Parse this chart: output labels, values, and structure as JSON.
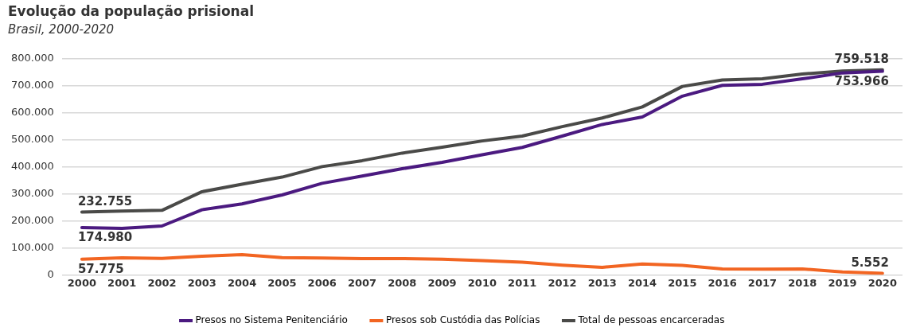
{
  "chart_data": {
    "type": "line",
    "title": "Evolução da população prisional",
    "subtitle": "Brasil, 2000-2020",
    "categories": [
      "2000",
      "2001",
      "2002",
      "2003",
      "2004",
      "2005",
      "2006",
      "2007",
      "2008",
      "2009",
      "2010",
      "2011",
      "2012",
      "2013",
      "2014",
      "2015",
      "2016",
      "2017",
      "2018",
      "2019",
      "2020"
    ],
    "series": [
      {
        "name": "Presos no Sistema Penitenciário",
        "color": "#4b1a80",
        "values": [
          174980,
          172000,
          181000,
          241000,
          263000,
          296000,
          339000,
          366000,
          393000,
          417000,
          445000,
          472000,
          514000,
          557000,
          585000,
          662000,
          702000,
          706000,
          726000,
          748000,
          753966
        ]
      },
      {
        "name": "Presos sob Custódia das Polícias",
        "color": "#f26522",
        "values": [
          57775,
          63000,
          61000,
          69000,
          75000,
          64000,
          62000,
          60000,
          60000,
          58000,
          53000,
          47000,
          36000,
          28000,
          40000,
          35000,
          22000,
          21000,
          22000,
          11000,
          5552
        ]
      },
      {
        "name": "Total de pessoas encarceradas",
        "color": "#4a4a48",
        "values": [
          232755,
          236000,
          239000,
          308000,
          336000,
          362000,
          401000,
          423000,
          451000,
          473000,
          496000,
          514000,
          549000,
          581000,
          622000,
          698000,
          722000,
          726000,
          744000,
          755000,
          759518
        ]
      }
    ],
    "ylim": [
      0,
      800000
    ],
    "yticks": [
      0,
      {
        "value": 100000,
        "label": "100.000"
      },
      {
        "value": 200000,
        "label": "200.000"
      },
      {
        "value": 300000,
        "label": "300.000"
      },
      {
        "value": 400000,
        "label": "400.000"
      },
      {
        "value": 500000,
        "label": "500.000"
      },
      {
        "value": 600000,
        "label": "600.000"
      },
      {
        "value": 700000,
        "label": "700.000"
      },
      {
        "value": 800000,
        "label": "800.000"
      }
    ],
    "annotations": [
      {
        "text": "232.755",
        "x": "2000",
        "y": 232755
      },
      {
        "text": "174.980",
        "x": "2000",
        "y": 174980
      },
      {
        "text": "57.775",
        "x": "2000",
        "y": 57775
      },
      {
        "text": "759.518",
        "x": "2020",
        "y": 759518
      },
      {
        "text": "753.966",
        "x": "2020",
        "y": 753966
      },
      {
        "text": "5.552",
        "x": "2020",
        "y": 5552
      }
    ],
    "grid": "y",
    "legend": "bottom",
    "marker": "none",
    "line_style": "solid"
  }
}
